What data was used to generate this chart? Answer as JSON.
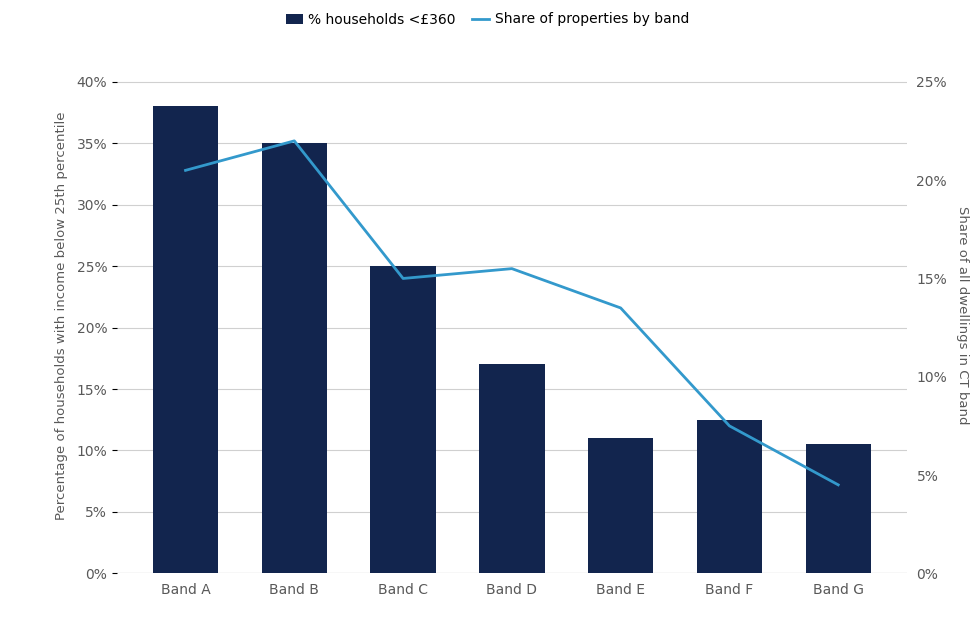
{
  "categories": [
    "Band A",
    "Band B",
    "Band C",
    "Band D",
    "Band E",
    "Band F",
    "Band G"
  ],
  "bar_values": [
    38,
    35,
    25,
    17,
    11,
    12.5,
    10.5
  ],
  "line_values": [
    20.5,
    22,
    15,
    15.5,
    13.5,
    7.5,
    4.5
  ],
  "bar_color": "#12254e",
  "line_color": "#3399cc",
  "bar_label": "% households <£360",
  "line_label": "Share of properties by band",
  "ylabel_left": "Percentage of households with income below 25th percentile",
  "ylabel_right": "Share of all dwellings in CT band",
  "ylim_left": [
    0,
    42
  ],
  "ylim_right": [
    0,
    26.25
  ],
  "yticks_left": [
    0,
    5,
    10,
    15,
    20,
    25,
    30,
    35,
    40
  ],
  "yticks_right": [
    0,
    5,
    10,
    15,
    20,
    25
  ],
  "ytick_labels_left": [
    "0%",
    "5%",
    "10%",
    "15%",
    "20%",
    "25%",
    "30%",
    "35%",
    "40%"
  ],
  "ytick_labels_right": [
    "0%",
    "5%",
    "10%",
    "15%",
    "20%",
    "25%"
  ],
  "background_color": "#ffffff",
  "grid_color": "#d0d0d0",
  "tick_label_color": "#595959",
  "axis_label_color": "#595959",
  "axis_label_fontsize": 9.5,
  "tick_fontsize": 10,
  "legend_fontsize": 10,
  "bar_width": 0.6
}
